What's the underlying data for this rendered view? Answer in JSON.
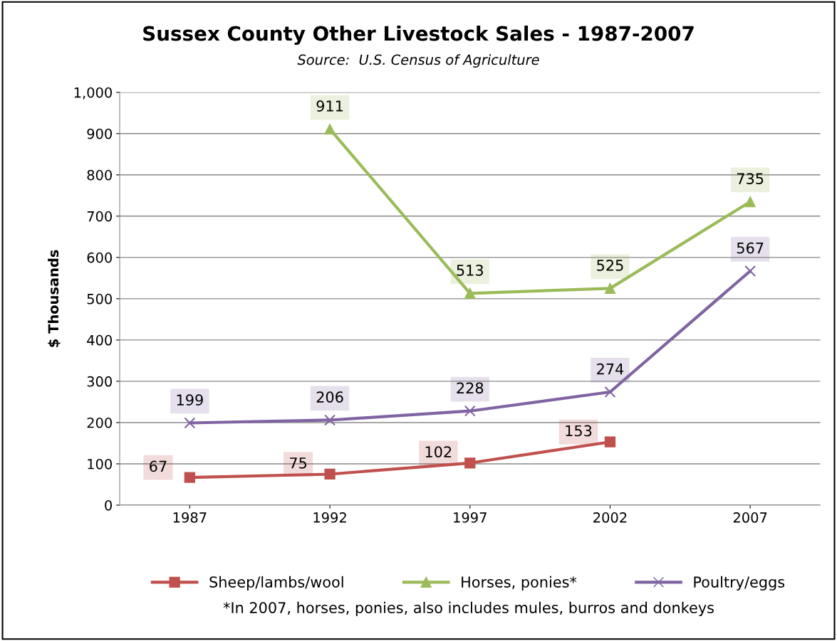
{
  "chart_data": {
    "type": "line",
    "title": "Sussex County Other Livestock Sales - 1987-2007",
    "subtitle": "Source:  U.S. Census of Agriculture",
    "ylabel": "$ Thousands",
    "categories": [
      "1987",
      "1992",
      "1997",
      "2002",
      "2007"
    ],
    "series": [
      {
        "name": "Sheep/lambs/wool",
        "color": "#c0504d",
        "marker": "square",
        "values": [
          67,
          75,
          102,
          153,
          null
        ]
      },
      {
        "name": "Horses, ponies*",
        "color": "#9bbb59",
        "marker": "triangle",
        "values": [
          null,
          911,
          513,
          525,
          735
        ]
      },
      {
        "name": "Poultry/eggs",
        "color": "#8064a2",
        "marker": "cross",
        "values": [
          199,
          206,
          228,
          274,
          567
        ]
      }
    ],
    "ylim": [
      0,
      1000
    ],
    "yticks": [
      0,
      100,
      200,
      300,
      400,
      500,
      600,
      700,
      800,
      900,
      {
        "value": 1000,
        "label": "1,000"
      }
    ],
    "grid": "y",
    "legend": "bottom",
    "data_labels": true,
    "line_style": "solid",
    "annotations": [
      "*In 2007, horses, ponies, also includes mules, burros and donkeys"
    ]
  }
}
